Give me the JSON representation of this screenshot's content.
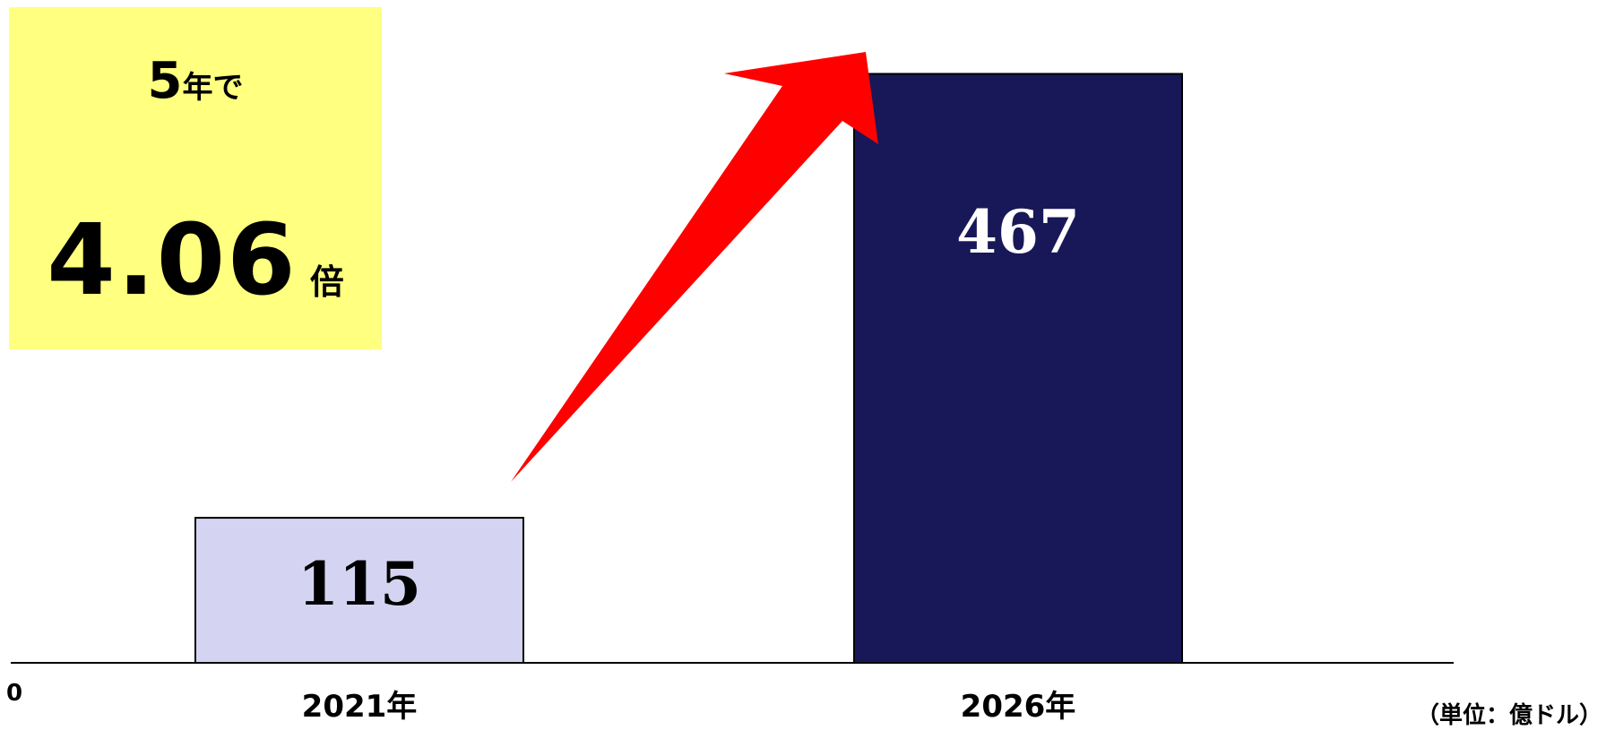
{
  "callout": {
    "line1_number": "5",
    "line1_rest": "年で",
    "line2_number": "4.06",
    "line2_rest": "倍"
  },
  "unit_label": "（単位：億ドル）",
  "chart_data": {
    "type": "bar",
    "title": "",
    "xlabel": "",
    "ylabel": "",
    "categories": [
      "2021年",
      "2026年"
    ],
    "series": [
      {
        "values": [
          115,
          467
        ]
      }
    ],
    "data_labels": [
      "115",
      "467"
    ],
    "bar_colors": [
      "#d4d4f2",
      "#181858"
    ],
    "label_colors": [
      "#000000",
      "#ffffff"
    ],
    "ylim": [
      0,
      500
    ],
    "y_tick_labels": [
      "0"
    ],
    "grid": false,
    "legend": "none",
    "arrow_color": "#ff0000"
  }
}
